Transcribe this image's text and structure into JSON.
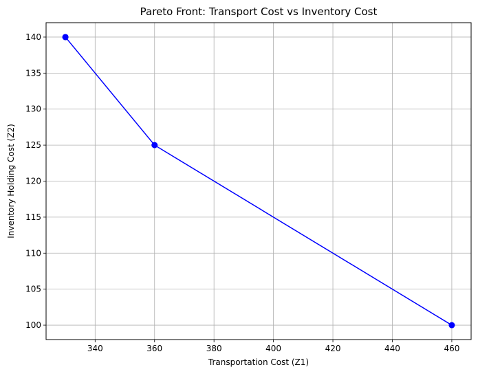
{
  "chart_data": {
    "type": "line",
    "title": "Pareto Front: Transport Cost vs Inventory Cost",
    "xlabel": "Transportation Cost (Z1)",
    "ylabel": "Inventory Holding Cost (Z2)",
    "xlim": [
      323.5,
      466.5
    ],
    "ylim": [
      98,
      142
    ],
    "xticks": [
      340,
      360,
      380,
      400,
      420,
      440,
      460
    ],
    "yticks": [
      100,
      105,
      110,
      115,
      120,
      125,
      130,
      135,
      140
    ],
    "grid": true,
    "series": [
      {
        "color": "#0000ff",
        "marker": "circle",
        "x": [
          330,
          330,
          360,
          460
        ],
        "y": [
          140,
          140,
          125,
          100
        ]
      }
    ]
  }
}
